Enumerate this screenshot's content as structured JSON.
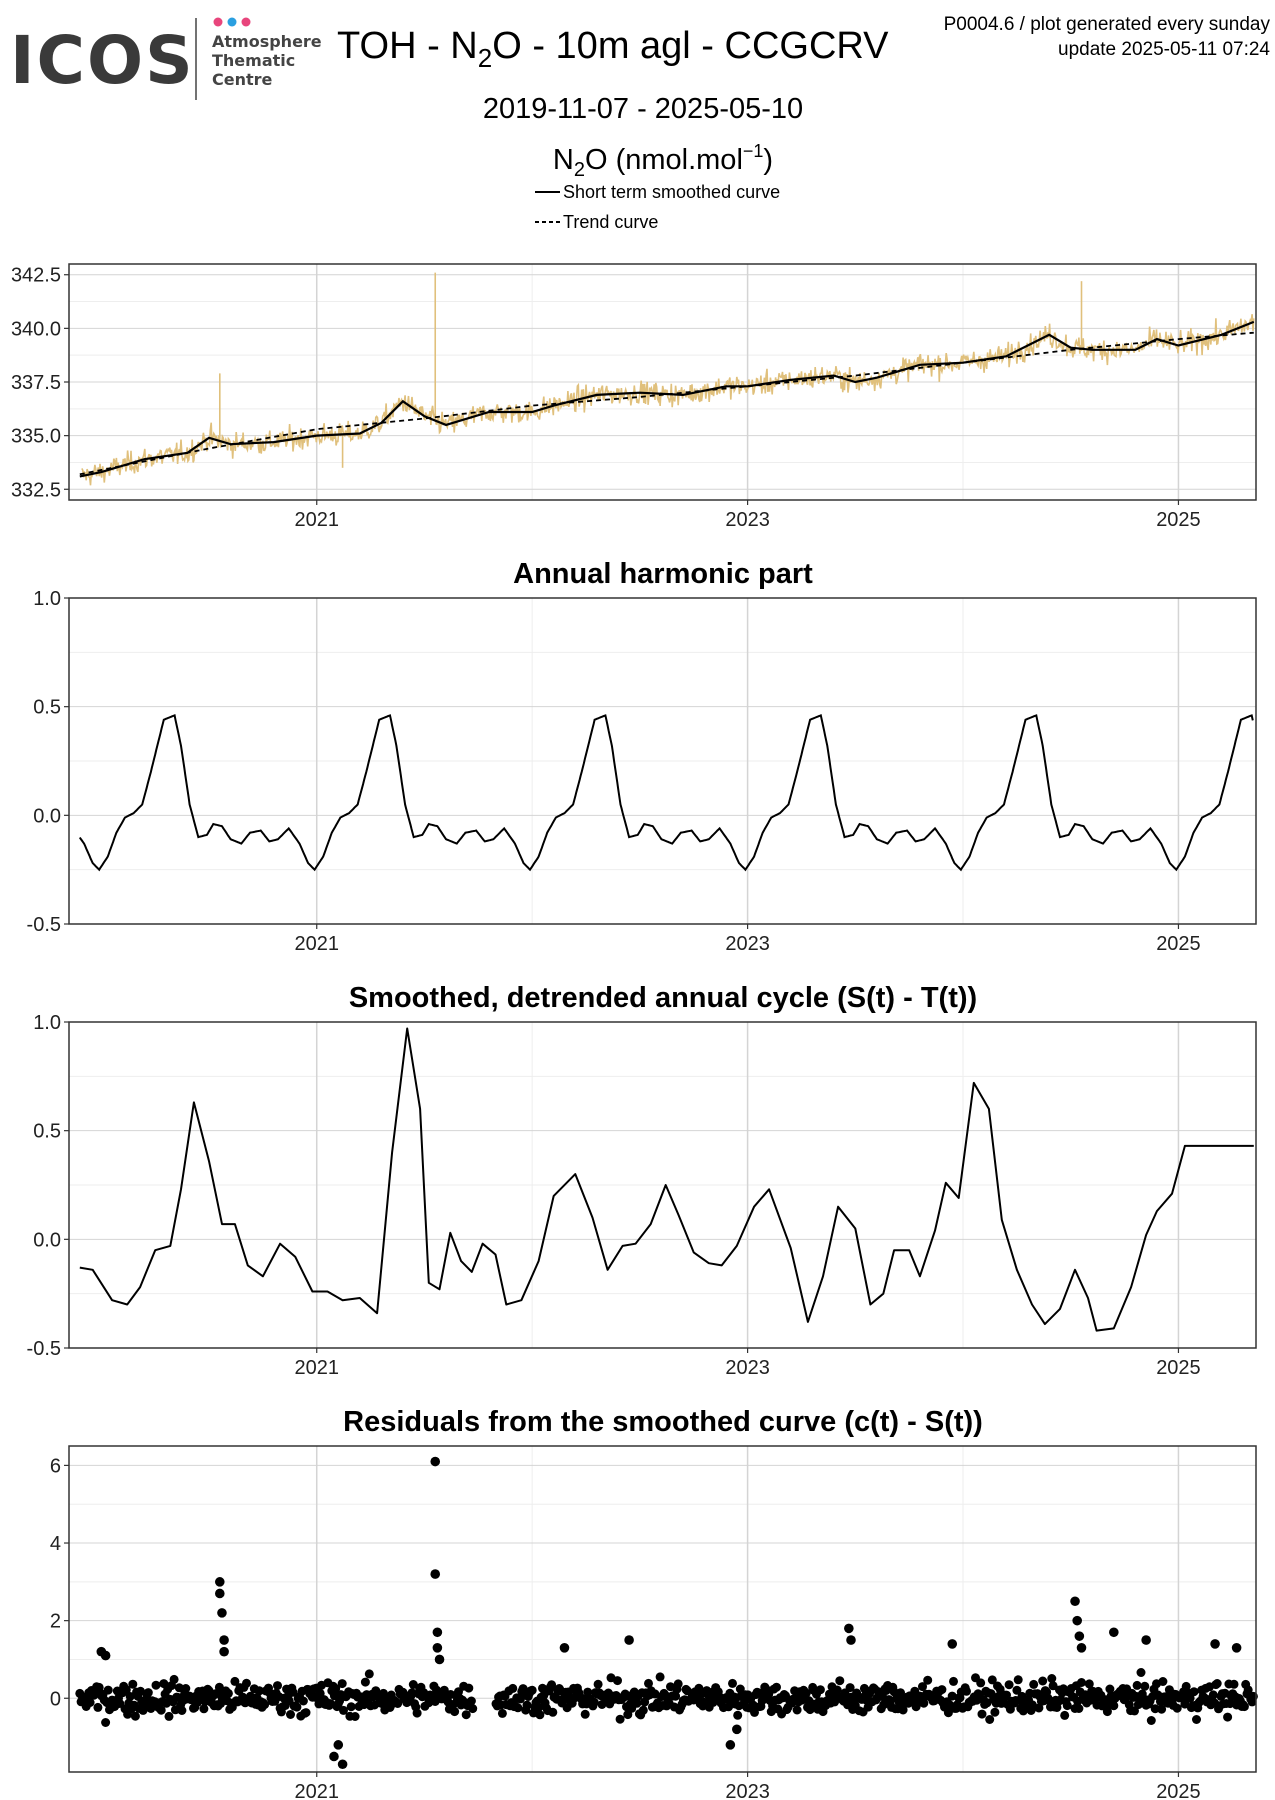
{
  "header": {
    "logo_main": "ICOS",
    "logo_sub": [
      "Atmosphere",
      "Thematic",
      "Centre"
    ],
    "logo_dot_colors": [
      "#e8457c",
      "#2a9fe0",
      "#e8457c"
    ],
    "title_prefix": "TOH - N",
    "title_sub": "2",
    "title_suffix": "O - 10m agl - CCGCRV",
    "date_range": "2019-11-07 - 2025-05-10",
    "meta_line1": "P0004.6 / plot generated every sunday",
    "meta_line2": "update  2025-05-11 07:24",
    "ylabel_base": "N",
    "ylabel_sub": "2",
    "ylabel_mid": "O (nmol.mol",
    "ylabel_sup": "−1",
    "ylabel_end": ")",
    "legend": [
      {
        "label": "Short term smoothed curve",
        "style": "solid"
      },
      {
        "label": "Trend curve",
        "style": "dashed"
      }
    ]
  },
  "colors": {
    "raw_data": "#e0c07c",
    "curves": "#000000",
    "grid_major": "#d4d4d4",
    "grid_minor": "#eeeeee"
  },
  "chart_data": [
    {
      "type": "line",
      "title": "",
      "ylabel": "N2O (nmol.mol-1)",
      "xlim": [
        2019.85,
        2025.36
      ],
      "ylim": [
        332.0,
        343.0
      ],
      "yticks": [
        332.5,
        335.0,
        337.5,
        340.0,
        342.5
      ],
      "ytick_labels": [
        "332.5",
        "335.0",
        "337.5",
        "340.0",
        "342.5"
      ],
      "xticks": [
        2021,
        2023,
        2025
      ],
      "xtick_labels": [
        "2021",
        "2023",
        "2025"
      ],
      "grid": true,
      "series": [
        {
          "name": "Short term smoothed curve",
          "style": "solid",
          "x": [
            2019.9,
            2020.0,
            2020.2,
            2020.4,
            2020.5,
            2020.6,
            2020.8,
            2021.0,
            2021.2,
            2021.3,
            2021.4,
            2021.5,
            2021.6,
            2021.8,
            2022.0,
            2022.1,
            2022.3,
            2022.5,
            2022.7,
            2022.9,
            2023.0,
            2023.2,
            2023.4,
            2023.5,
            2023.6,
            2023.8,
            2024.0,
            2024.2,
            2024.4,
            2024.5,
            2024.6,
            2024.8,
            2024.9,
            2025.0,
            2025.2,
            2025.35
          ],
          "y": [
            333.1,
            333.3,
            333.9,
            334.2,
            334.9,
            334.6,
            334.7,
            335.0,
            335.1,
            335.6,
            336.6,
            335.9,
            335.5,
            336.1,
            336.1,
            336.4,
            336.9,
            337.0,
            336.9,
            337.3,
            337.3,
            337.6,
            337.8,
            337.5,
            337.7,
            338.3,
            338.4,
            338.7,
            339.7,
            339.1,
            339.0,
            339.0,
            339.5,
            339.2,
            339.7,
            340.3
          ]
        },
        {
          "name": "Trend curve",
          "style": "dashed",
          "x": [
            2019.9,
            2020.5,
            2021.0,
            2021.5,
            2022.0,
            2022.5,
            2023.0,
            2023.5,
            2024.0,
            2024.5,
            2025.0,
            2025.35
          ],
          "y": [
            333.2,
            334.4,
            335.3,
            335.8,
            336.4,
            336.8,
            337.3,
            337.8,
            338.4,
            339.0,
            339.5,
            339.8
          ]
        }
      ]
    },
    {
      "type": "line",
      "title": "Annual harmonic part",
      "xlim": [
        2019.85,
        2025.36
      ],
      "ylim": [
        -0.5,
        1.0
      ],
      "yticks": [
        -0.5,
        0.0,
        0.5,
        1.0
      ],
      "ytick_labels": [
        "-0.5",
        "0.0",
        "0.5",
        "1.0"
      ],
      "xticks": [
        2021,
        2023,
        2025
      ],
      "xtick_labels": [
        "2021",
        "2023",
        "2025"
      ],
      "grid": true,
      "cycle_x": [
        0.0,
        0.04,
        0.08,
        0.12,
        0.16,
        0.2,
        0.24,
        0.3,
        0.35,
        0.38,
        0.42,
        0.46,
        0.5,
        0.53,
        0.57,
        0.61,
        0.66,
        0.7,
        0.75,
        0.79,
        0.83,
        0.88,
        0.93,
        0.97,
        1.0
      ],
      "cycle_y": [
        -0.25,
        -0.19,
        -0.08,
        -0.01,
        0.01,
        0.05,
        0.2,
        0.44,
        0.46,
        0.32,
        0.05,
        -0.1,
        -0.09,
        -0.04,
        -0.05,
        -0.11,
        -0.13,
        -0.08,
        -0.07,
        -0.12,
        -0.11,
        -0.06,
        -0.13,
        -0.22,
        -0.25
      ],
      "cycle_start": 2020.99,
      "series": [
        {
          "name": "",
          "x": [
            2019.9,
            2025.35
          ]
        }
      ]
    },
    {
      "type": "line",
      "title": "Smoothed, detrended annual cycle (S(t) - T(t))",
      "xlim": [
        2019.85,
        2025.36
      ],
      "ylim": [
        -0.5,
        1.0
      ],
      "yticks": [
        -0.5,
        0.0,
        0.5,
        1.0
      ],
      "ytick_labels": [
        "-0.5",
        "0.0",
        "0.5",
        "1.0"
      ],
      "xticks": [
        2021,
        2023,
        2025
      ],
      "xtick_labels": [
        "2021",
        "2023",
        "2025"
      ],
      "grid": true,
      "series": [
        {
          "name": "",
          "x": [
            2019.9,
            2019.96,
            2020.05,
            2020.12,
            2020.18,
            2020.25,
            2020.32,
            2020.37,
            2020.43,
            2020.5,
            2020.56,
            2020.62,
            2020.68,
            2020.75,
            2020.83,
            2020.9,
            2020.98,
            2021.05,
            2021.12,
            2021.2,
            2021.28,
            2021.35,
            2021.42,
            2021.48,
            2021.52,
            2021.57,
            2021.62,
            2021.67,
            2021.72,
            2021.77,
            2021.83,
            2021.88,
            2021.95,
            2022.03,
            2022.1,
            2022.2,
            2022.28,
            2022.35,
            2022.42,
            2022.48,
            2022.55,
            2022.62,
            2022.68,
            2022.75,
            2022.82,
            2022.88,
            2022.95,
            2023.03,
            2023.1,
            2023.2,
            2023.28,
            2023.35,
            2023.42,
            2023.5,
            2023.57,
            2023.63,
            2023.68,
            2023.75,
            2023.8,
            2023.87,
            2023.92,
            2023.98,
            2024.05,
            2024.12,
            2024.18,
            2024.25,
            2024.32,
            2024.38,
            2024.45,
            2024.52,
            2024.58,
            2024.62,
            2024.7,
            2024.78,
            2024.85,
            2024.9,
            2024.97,
            2025.03,
            2025.1,
            2025.18,
            2025.27,
            2025.35
          ],
          "y": [
            -0.13,
            -0.14,
            -0.28,
            -0.3,
            -0.22,
            -0.05,
            -0.03,
            0.23,
            0.63,
            0.36,
            0.07,
            0.07,
            -0.12,
            -0.17,
            -0.02,
            -0.08,
            -0.24,
            -0.24,
            -0.28,
            -0.27,
            -0.34,
            0.4,
            0.97,
            0.6,
            -0.2,
            -0.23,
            0.03,
            -0.1,
            -0.15,
            -0.02,
            -0.07,
            -0.3,
            -0.28,
            -0.1,
            0.2,
            0.3,
            0.1,
            -0.14,
            -0.03,
            -0.02,
            0.07,
            0.25,
            0.11,
            -0.06,
            -0.11,
            -0.12,
            -0.03,
            0.15,
            0.23,
            -0.04,
            -0.38,
            -0.17,
            0.15,
            0.05,
            -0.3,
            -0.25,
            -0.05,
            -0.05,
            -0.17,
            0.04,
            0.26,
            0.19,
            0.72,
            0.6,
            0.09,
            -0.14,
            -0.3,
            -0.39,
            -0.32,
            -0.14,
            -0.27,
            -0.42,
            -0.41,
            -0.22,
            0.02,
            0.13,
            0.21,
            0.43,
            0.43,
            0.43,
            0.43,
            0.43
          ]
        }
      ]
    },
    {
      "type": "scatter",
      "title": "Residuals from the smoothed curve (c(t) - S(t))",
      "xlim": [
        2019.85,
        2025.36
      ],
      "ylim": [
        -1.9,
        6.5
      ],
      "yticks": [
        0,
        2,
        4,
        6
      ],
      "ytick_labels": [
        "0",
        "2",
        "4",
        "6"
      ],
      "xticks": [
        2021,
        2023,
        2025
      ],
      "xtick_labels": [
        "2021",
        "2023",
        "2025"
      ],
      "grid": true,
      "series": [
        {
          "name": "",
          "x": [
            2020.55,
            2020.55,
            2020.56,
            2020.57,
            2020.57,
            2021.55,
            2021.55,
            2021.56,
            2021.56,
            2021.57,
            2024.52,
            2024.53,
            2024.54,
            2024.55,
            2021.08,
            2021.1,
            2021.12,
            2022.92,
            2022.95,
            2023.47,
            2023.48,
            2024.7,
            2025.17,
            2025.27,
            2020.0,
            2020.02,
            2022.15,
            2024.85,
            2022.45,
            2023.95
          ],
          "y": [
            3.0,
            2.7,
            2.2,
            1.5,
            1.2,
            6.1,
            3.2,
            1.7,
            1.3,
            1.0,
            2.5,
            2.0,
            1.6,
            1.3,
            -1.5,
            -1.2,
            -1.7,
            -1.2,
            -0.8,
            1.8,
            1.5,
            1.7,
            1.4,
            1.3,
            1.2,
            1.1,
            1.3,
            1.5,
            1.5,
            1.4
          ]
        }
      ]
    }
  ]
}
